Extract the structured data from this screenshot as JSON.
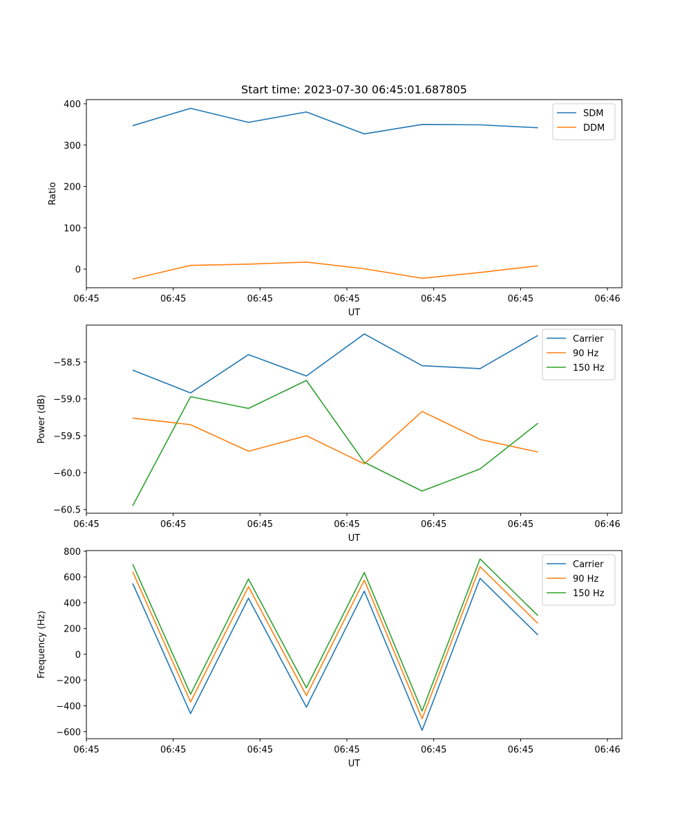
{
  "figure_title": "Start time: 2023-07-30 06:45:01.687805",
  "colors": {
    "blue": "#1f77b4",
    "orange": "#ff7f0e",
    "green": "#2ca02c"
  },
  "chart_data": [
    {
      "type": "line",
      "title": "Start time: 2023-07-30 06:45:01.687805",
      "xlabel": "UT",
      "ylabel": "Ratio",
      "x": [
        1,
        2,
        3,
        4,
        5,
        6,
        7,
        8
      ],
      "xlim": [
        0.2,
        9.45
      ],
      "xticks": [
        0.2,
        1.7,
        3.2,
        4.7,
        6.2,
        7.7,
        9.2
      ],
      "xtick_labels": [
        "06:45",
        "06:45",
        "06:45",
        "06:45",
        "06:45",
        "06:45",
        "06:46"
      ],
      "ylim": [
        -45,
        410
      ],
      "yticks": [
        0,
        100,
        200,
        300,
        400
      ],
      "ytick_labels": [
        "0",
        "100",
        "200",
        "300",
        "400"
      ],
      "legend": "top-right",
      "series": [
        {
          "name": "SDM",
          "color": "#1f77b4",
          "values": [
            347,
            389,
            355,
            380,
            327,
            350,
            349,
            342
          ]
        },
        {
          "name": "DDM",
          "color": "#ff7f0e",
          "values": [
            -24,
            9,
            12,
            17,
            1,
            -22,
            -8,
            8
          ]
        }
      ]
    },
    {
      "type": "line",
      "title": "",
      "xlabel": "UT",
      "ylabel": "Power (dB)",
      "x": [
        1,
        2,
        3,
        4,
        5,
        6,
        7,
        8
      ],
      "xlim": [
        0.2,
        9.45
      ],
      "xticks": [
        0.2,
        1.7,
        3.2,
        4.7,
        6.2,
        7.7,
        9.2
      ],
      "xtick_labels": [
        "06:45",
        "06:45",
        "06:45",
        "06:45",
        "06:45",
        "06:45",
        "06:46"
      ],
      "ylim": [
        -60.55,
        -58.0
      ],
      "yticks": [
        -60.5,
        -60.0,
        -59.5,
        -59.0,
        -58.5
      ],
      "ytick_labels": [
        "−60.5",
        "−60.0",
        "−59.5",
        "−59.0",
        "−58.5"
      ],
      "legend": "top-right",
      "series": [
        {
          "name": "Carrier",
          "color": "#1f77b4",
          "values": [
            -58.61,
            -58.92,
            -58.4,
            -58.69,
            -58.12,
            -58.55,
            -58.59,
            -58.14
          ]
        },
        {
          "name": "90 Hz",
          "color": "#ff7f0e",
          "values": [
            -59.26,
            -59.35,
            -59.71,
            -59.5,
            -59.88,
            -59.17,
            -59.55,
            -59.72
          ]
        },
        {
          "name": "150 Hz",
          "color": "#2ca02c",
          "values": [
            -60.45,
            -58.97,
            -59.13,
            -58.75,
            -59.86,
            -60.25,
            -59.95,
            -59.33
          ]
        }
      ]
    },
    {
      "type": "line",
      "title": "",
      "xlabel": "UT",
      "ylabel": "Frequency (Hz)",
      "x": [
        1,
        2,
        3,
        4,
        5,
        6,
        7,
        8
      ],
      "xlim": [
        0.2,
        9.45
      ],
      "xticks": [
        0.2,
        1.7,
        3.2,
        4.7,
        6.2,
        7.7,
        9.2
      ],
      "xtick_labels": [
        "06:45",
        "06:45",
        "06:45",
        "06:45",
        "06:45",
        "06:45",
        "06:46"
      ],
      "ylim": [
        -655,
        805
      ],
      "yticks": [
        -600,
        -400,
        -200,
        0,
        200,
        400,
        600,
        800
      ],
      "ytick_labels": [
        "−600",
        "−400",
        "−200",
        "0",
        "200",
        "400",
        "600",
        "800"
      ],
      "legend": "top-right",
      "series": [
        {
          "name": "Carrier",
          "color": "#1f77b4",
          "values": [
            550,
            -460,
            435,
            -410,
            490,
            -590,
            590,
            150
          ]
        },
        {
          "name": "90 Hz",
          "color": "#ff7f0e",
          "values": [
            640,
            -370,
            525,
            -320,
            575,
            -500,
            680,
            240
          ]
        },
        {
          "name": "150 Hz",
          "color": "#2ca02c",
          "values": [
            700,
            -310,
            585,
            -260,
            635,
            -440,
            740,
            300
          ]
        }
      ]
    }
  ]
}
